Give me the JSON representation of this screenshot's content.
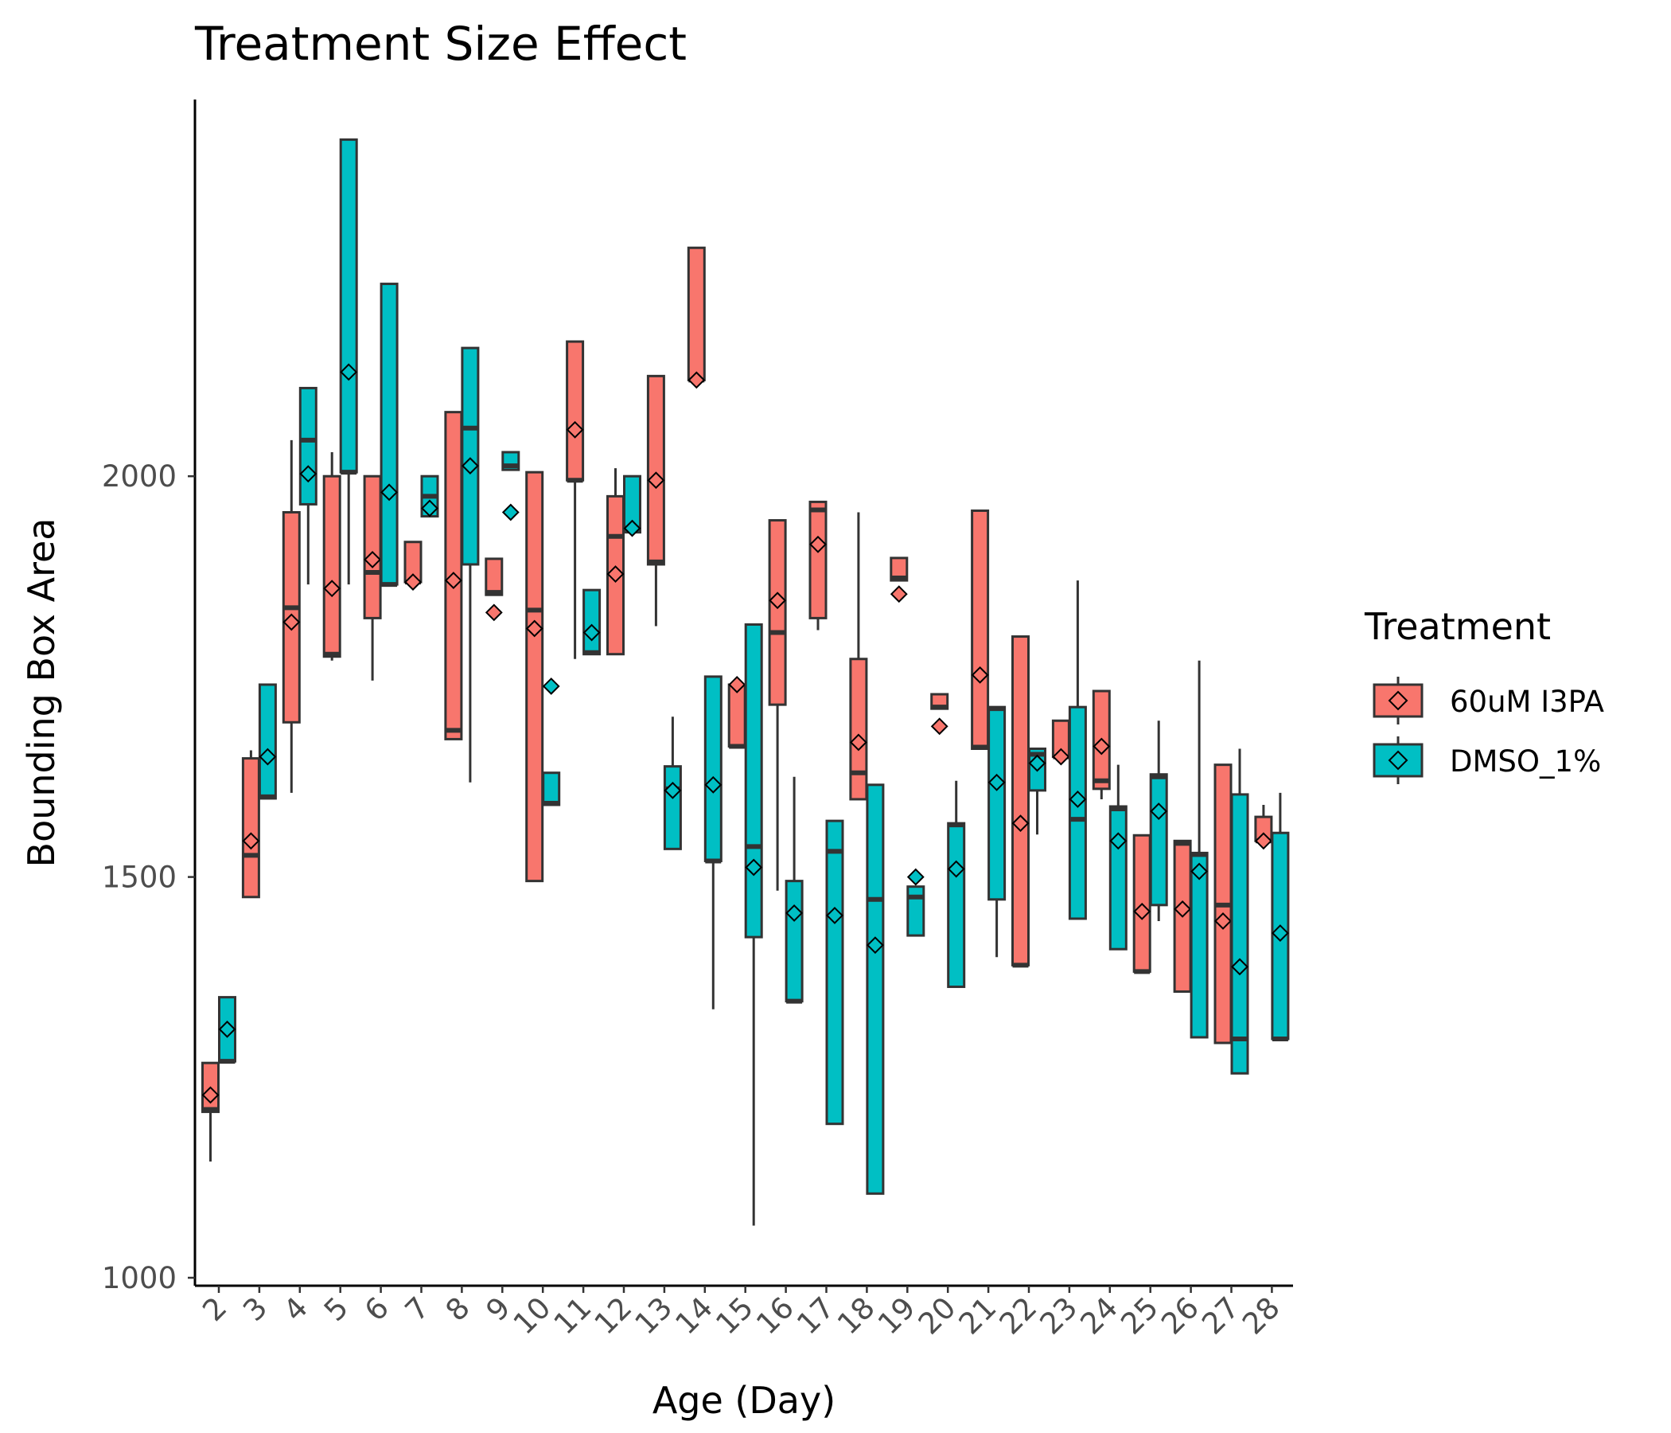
{
  "chart_data": {
    "type": "box",
    "title": "Treatment Size Effect",
    "xlabel": "Age (Day)",
    "ylabel": "Bounding Box Area",
    "ylim": [
      1000,
      2470
    ],
    "yticks": [
      1000,
      1500,
      2000
    ],
    "categories": [
      "2",
      "3",
      "4",
      "5",
      "6",
      "7",
      "8",
      "9",
      "10",
      "11",
      "12",
      "13",
      "14",
      "15",
      "16",
      "17",
      "18",
      "19",
      "20",
      "21",
      "22",
      "23",
      "24",
      "25",
      "26",
      "27",
      "28"
    ],
    "grid": false,
    "legend": {
      "title": "Treatment",
      "position": "right"
    },
    "series": [
      {
        "name": "60uM I3PA",
        "color": "#F8766D",
        "boxes": [
          {
            "x": "2",
            "wlo": 1145,
            "q1": 1207,
            "med": 1210,
            "q3": 1268,
            "whi": 1268,
            "mean": 1228
          },
          {
            "x": "3",
            "wlo": 1475,
            "q1": 1475,
            "med": 1527,
            "q3": 1648,
            "whi": 1658,
            "mean": 1545
          },
          {
            "x": "4",
            "wlo": 1605,
            "q1": 1693,
            "med": 1836,
            "q3": 1955,
            "whi": 2045,
            "mean": 1818
          },
          {
            "x": "5",
            "wlo": 1770,
            "q1": 1775,
            "med": 1778,
            "q3": 2000,
            "whi": 2030,
            "mean": 1860
          },
          {
            "x": "6",
            "wlo": 1745,
            "q1": 1823,
            "med": 1880,
            "q3": 2000,
            "whi": 2000,
            "mean": 1896
          },
          {
            "x": "7",
            "wlo": 1868,
            "q1": 1868,
            "med": 1868,
            "q3": 1918,
            "whi": 1918,
            "mean": 1868
          },
          {
            "x": "8",
            "wlo": 1672,
            "q1": 1672,
            "med": 1683,
            "q3": 2080,
            "whi": 2080,
            "mean": 1870
          },
          {
            "x": "9",
            "wlo": 1852,
            "q1": 1852,
            "med": 1855,
            "q3": 1897,
            "whi": 1897,
            "mean": 1830
          },
          {
            "x": "10",
            "wlo": 1495,
            "q1": 1495,
            "med": 1833,
            "q3": 2005,
            "whi": 2005,
            "mean": 1810
          },
          {
            "x": "11",
            "wlo": 1772,
            "q1": 1995,
            "med": 1995,
            "q3": 2168,
            "whi": 2168,
            "mean": 2058
          },
          {
            "x": "12",
            "wlo": 1778,
            "q1": 1778,
            "med": 1925,
            "q3": 1975,
            "whi": 2010,
            "mean": 1878
          },
          {
            "x": "13",
            "wlo": 1813,
            "q1": 1890,
            "med": 1893,
            "q3": 2125,
            "whi": 2125,
            "mean": 1995
          },
          {
            "x": "14",
            "wlo": 2120,
            "q1": 2120,
            "med": 2120,
            "q3": 2285,
            "whi": 2285,
            "mean": 2120
          },
          {
            "x": "15",
            "wlo": 1663,
            "q1": 1663,
            "med": 1663,
            "q3": 1740,
            "whi": 1740,
            "mean": 1740
          },
          {
            "x": "16",
            "wlo": 1483,
            "q1": 1715,
            "med": 1805,
            "q3": 1945,
            "whi": 1945,
            "mean": 1845
          },
          {
            "x": "17",
            "wlo": 1808,
            "q1": 1823,
            "med": 1958,
            "q3": 1968,
            "whi": 1968,
            "mean": 1915
          },
          {
            "x": "18",
            "wlo": 1597,
            "q1": 1597,
            "med": 1630,
            "q3": 1772,
            "whi": 1955,
            "mean": 1668
          },
          {
            "x": "19",
            "wlo": 1870,
            "q1": 1870,
            "med": 1873,
            "q3": 1898,
            "whi": 1898,
            "mean": 1853
          },
          {
            "x": "20",
            "wlo": 1710,
            "q1": 1710,
            "med": 1712,
            "q3": 1728,
            "whi": 1728,
            "mean": 1688
          },
          {
            "x": "21",
            "wlo": 1660,
            "q1": 1660,
            "med": 1662,
            "q3": 1957,
            "whi": 1957,
            "mean": 1752
          },
          {
            "x": "22",
            "wlo": 1390,
            "q1": 1390,
            "med": 1390,
            "q3": 1800,
            "whi": 1800,
            "mean": 1567
          },
          {
            "x": "23",
            "wlo": 1650,
            "q1": 1650,
            "med": 1650,
            "q3": 1695,
            "whi": 1695,
            "mean": 1650
          },
          {
            "x": "24",
            "wlo": 1597,
            "q1": 1610,
            "med": 1620,
            "q3": 1732,
            "whi": 1732,
            "mean": 1663
          },
          {
            "x": "25",
            "wlo": 1382,
            "q1": 1382,
            "med": 1382,
            "q3": 1552,
            "whi": 1552,
            "mean": 1457
          },
          {
            "x": "26",
            "wlo": 1357,
            "q1": 1357,
            "med": 1542,
            "q3": 1545,
            "whi": 1545,
            "mean": 1460
          },
          {
            "x": "27",
            "wlo": 1293,
            "q1": 1293,
            "med": 1465,
            "q3": 1640,
            "whi": 1640,
            "mean": 1445
          },
          {
            "x": "28",
            "wlo": 1545,
            "q1": 1545,
            "med": 1545,
            "q3": 1575,
            "whi": 1590,
            "mean": 1545
          }
        ]
      },
      {
        "name": "DMSO_1%",
        "color": "#00BFC4",
        "boxes": [
          {
            "x": "2",
            "wlo": 1270,
            "q1": 1270,
            "med": 1270,
            "q3": 1350,
            "whi": 1350,
            "mean": 1310
          },
          {
            "x": "3",
            "wlo": 1598,
            "q1": 1598,
            "med": 1600,
            "q3": 1740,
            "whi": 1740,
            "mean": 1650
          },
          {
            "x": "4",
            "wlo": 1865,
            "q1": 1965,
            "med": 2045,
            "q3": 2110,
            "whi": 2110,
            "mean": 2003
          },
          {
            "x": "5",
            "wlo": 1865,
            "q1": 2005,
            "med": 2005,
            "q3": 2420,
            "whi": 2420,
            "mean": 2130
          },
          {
            "x": "6",
            "wlo": 1865,
            "q1": 1865,
            "med": 1865,
            "q3": 2240,
            "whi": 2240,
            "mean": 1980
          },
          {
            "x": "7",
            "wlo": 1950,
            "q1": 1950,
            "med": 1975,
            "q3": 2000,
            "whi": 2000,
            "mean": 1960
          },
          {
            "x": "8",
            "wlo": 1618,
            "q1": 1890,
            "med": 2060,
            "q3": 2160,
            "whi": 2160,
            "mean": 2013
          },
          {
            "x": "9",
            "wlo": 2008,
            "q1": 2008,
            "med": 2013,
            "q3": 2030,
            "whi": 2030,
            "mean": 1955
          },
          {
            "x": "10",
            "wlo": 1590,
            "q1": 1590,
            "med": 1592,
            "q3": 1630,
            "whi": 1630,
            "mean": 1738
          },
          {
            "x": "11",
            "wlo": 1778,
            "q1": 1778,
            "med": 1780,
            "q3": 1858,
            "whi": 1858,
            "mean": 1805
          },
          {
            "x": "12",
            "wlo": 1930,
            "q1": 1930,
            "med": 1935,
            "q3": 2000,
            "whi": 2000,
            "mean": 1935
          },
          {
            "x": "13",
            "wlo": 1535,
            "q1": 1535,
            "med": 1610,
            "q3": 1638,
            "whi": 1700,
            "mean": 1608
          },
          {
            "x": "14",
            "wlo": 1335,
            "q1": 1520,
            "med": 1520,
            "q3": 1750,
            "whi": 1750,
            "mean": 1615
          },
          {
            "x": "15",
            "wlo": 1065,
            "q1": 1425,
            "med": 1538,
            "q3": 1815,
            "whi": 1815,
            "mean": 1512
          },
          {
            "x": "16",
            "wlo": 1345,
            "q1": 1345,
            "med": 1345,
            "q3": 1495,
            "whi": 1625,
            "mean": 1455
          },
          {
            "x": "17",
            "wlo": 1192,
            "q1": 1192,
            "med": 1532,
            "q3": 1570,
            "whi": 1570,
            "mean": 1452
          },
          {
            "x": "18",
            "wlo": 1105,
            "q1": 1105,
            "med": 1472,
            "q3": 1615,
            "whi": 1615,
            "mean": 1415
          },
          {
            "x": "19",
            "wlo": 1427,
            "q1": 1427,
            "med": 1475,
            "q3": 1488,
            "whi": 1488,
            "mean": 1500
          },
          {
            "x": "20",
            "wlo": 1363,
            "q1": 1363,
            "med": 1565,
            "q3": 1567,
            "whi": 1620,
            "mean": 1510
          },
          {
            "x": "21",
            "wlo": 1400,
            "q1": 1472,
            "med": 1710,
            "q3": 1712,
            "whi": 1712,
            "mean": 1618
          },
          {
            "x": "22",
            "wlo": 1553,
            "q1": 1608,
            "med": 1653,
            "q3": 1660,
            "whi": 1660,
            "mean": 1642
          },
          {
            "x": "23",
            "wlo": 1448,
            "q1": 1448,
            "med": 1572,
            "q3": 1712,
            "whi": 1870,
            "mean": 1597
          },
          {
            "x": "24",
            "wlo": 1410,
            "q1": 1410,
            "med": 1585,
            "q3": 1588,
            "whi": 1640,
            "mean": 1545
          },
          {
            "x": "25",
            "wlo": 1445,
            "q1": 1465,
            "med": 1625,
            "q3": 1628,
            "whi": 1695,
            "mean": 1582
          },
          {
            "x": "26",
            "wlo": 1300,
            "q1": 1300,
            "med": 1528,
            "q3": 1530,
            "whi": 1770,
            "mean": 1507
          },
          {
            "x": "27",
            "wlo": 1255,
            "q1": 1255,
            "med": 1298,
            "q3": 1603,
            "whi": 1660,
            "mean": 1388
          },
          {
            "x": "28",
            "wlo": 1298,
            "q1": 1298,
            "med": 1298,
            "q3": 1555,
            "whi": 1605,
            "mean": 1430
          }
        ]
      }
    ]
  }
}
